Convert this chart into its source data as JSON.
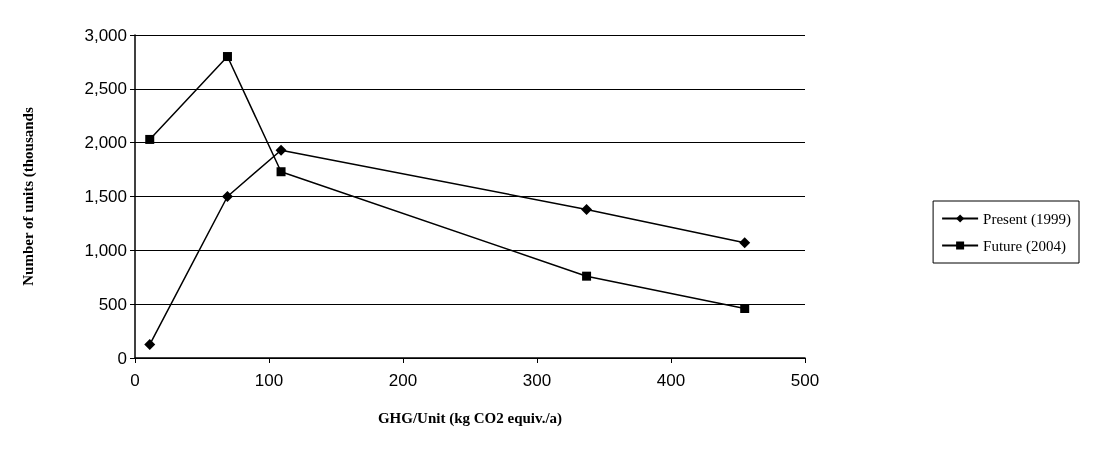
{
  "chart_data": {
    "type": "line",
    "xlabel": "GHG/Unit (kg CO2 equiv./a)",
    "ylabel": "Number of units (thousands",
    "xlim": [
      0,
      500
    ],
    "xticks": [
      0,
      100,
      200,
      300,
      400,
      500
    ],
    "ylim": [
      0,
      3000
    ],
    "yticks": [
      {
        "value": 0,
        "label": "0"
      },
      {
        "value": 500,
        "label": "500"
      },
      {
        "value": 1000,
        "label": "1,000"
      },
      {
        "value": 1500,
        "label": "1,500"
      },
      {
        "value": 2000,
        "label": "2,000"
      },
      {
        "value": 2500,
        "label": "2,500"
      },
      {
        "value": 3000,
        "label": "3,000"
      }
    ],
    "grid": "y",
    "legend": "right",
    "line_style": "solid",
    "series": [
      {
        "name": "Present (1999)",
        "color": "#000000",
        "marker": "diamond",
        "x": [
          11,
          69,
          109,
          337,
          455
        ],
        "values": [
          125,
          1500,
          1930,
          1380,
          1070
        ]
      },
      {
        "name": "Future (2004)",
        "color": "#000000",
        "marker": "square",
        "x": [
          11,
          69,
          109,
          337,
          455
        ],
        "values": [
          2030,
          2800,
          1730,
          760,
          460
        ]
      }
    ]
  }
}
